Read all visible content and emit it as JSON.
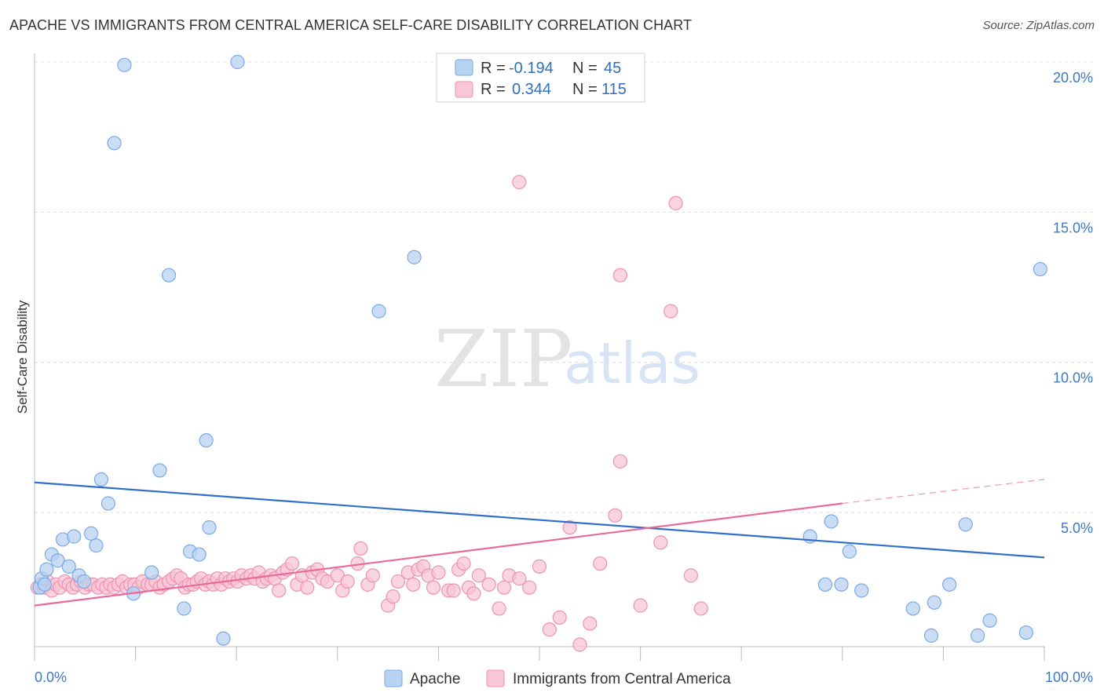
{
  "title": "APACHE VS IMMIGRANTS FROM CENTRAL AMERICA SELF-CARE DISABILITY CORRELATION CHART",
  "source": "Source: ZipAtlas.com",
  "watermark": {
    "zip": "ZIP",
    "atlas": "atlas"
  },
  "colors": {
    "apache_fill": "#b8d2f2",
    "apache_stroke": "#7aaae4",
    "apache_line": "#2f6fc9",
    "imm_fill": "#f8c6d6",
    "imm_stroke": "#ec93b1",
    "imm_line": "#e8699a",
    "grid": "#dddddd",
    "tick_label": "#3c78c8"
  },
  "legend": {
    "rows": [
      {
        "r_label": "R =",
        "r_value": "-0.194",
        "n_label": "N =",
        "n_value": "45"
      },
      {
        "r_label": "R =",
        "r_value": "0.344",
        "n_label": "N =",
        "n_value": "115"
      }
    ]
  },
  "chart_data": {
    "type": "scatter",
    "title": "APACHE VS IMMIGRANTS FROM CENTRAL AMERICA SELF-CARE DISABILITY CORRELATION CHART",
    "xlabel": "",
    "ylabel": "Self-Care Disability",
    "xlim": [
      0,
      100
    ],
    "ylim": [
      0,
      20.5
    ],
    "x_tick_labels": [
      "0.0%",
      "100.0%"
    ],
    "y_ticks": [
      5,
      10,
      15,
      20
    ],
    "y_tick_labels": [
      "5.0%",
      "10.0%",
      "15.0%",
      "20.0%"
    ],
    "grid": true,
    "legend_position": "top-center",
    "series": [
      {
        "name": "Apache",
        "r": -0.194,
        "n": 45,
        "trend": {
          "x0": 0,
          "y0": 6.0,
          "x1": 100,
          "y1": 3.5
        },
        "points": [
          [
            0.5,
            2.5
          ],
          [
            0.7,
            2.8
          ],
          [
            1.0,
            2.6
          ],
          [
            1.2,
            3.1
          ],
          [
            1.7,
            3.6
          ],
          [
            2.3,
            3.4
          ],
          [
            2.8,
            4.1
          ],
          [
            3.4,
            3.2
          ],
          [
            3.9,
            4.2
          ],
          [
            4.4,
            2.9
          ],
          [
            4.9,
            2.7
          ],
          [
            5.6,
            4.3
          ],
          [
            6.1,
            3.9
          ],
          [
            6.6,
            6.1
          ],
          [
            7.3,
            5.3
          ],
          [
            7.9,
            17.3
          ],
          [
            8.9,
            19.9
          ],
          [
            9.8,
            2.3
          ],
          [
            11.6,
            3.0
          ],
          [
            12.4,
            6.4
          ],
          [
            13.3,
            12.9
          ],
          [
            14.8,
            1.8
          ],
          [
            15.4,
            3.7
          ],
          [
            16.3,
            3.6
          ],
          [
            17.0,
            7.4
          ],
          [
            17.3,
            4.5
          ],
          [
            18.7,
            0.8
          ],
          [
            20.1,
            20.0
          ],
          [
            34.1,
            11.7
          ],
          [
            37.6,
            13.5
          ],
          [
            76.8,
            4.2
          ],
          [
            78.3,
            2.6
          ],
          [
            78.9,
            4.7
          ],
          [
            79.9,
            2.6
          ],
          [
            80.7,
            3.7
          ],
          [
            81.9,
            2.4
          ],
          [
            87.0,
            1.8
          ],
          [
            88.8,
            0.9
          ],
          [
            89.1,
            2.0
          ],
          [
            90.6,
            2.6
          ],
          [
            92.2,
            4.6
          ],
          [
            93.4,
            0.9
          ],
          [
            94.6,
            1.4
          ],
          [
            98.2,
            1.0
          ],
          [
            99.6,
            13.1
          ]
        ]
      },
      {
        "name": "Immigrants from Central America",
        "r": 0.344,
        "n": 115,
        "trend": {
          "x0": 0,
          "y0": 1.9,
          "x1": 80,
          "y1": 5.3
        },
        "trend_dashed_to": {
          "x": 100,
          "y": 6.1
        },
        "points": [
          [
            0.3,
            2.5
          ],
          [
            0.6,
            2.6
          ],
          [
            0.9,
            2.5
          ],
          [
            1.3,
            2.7
          ],
          [
            1.7,
            2.4
          ],
          [
            2.1,
            2.6
          ],
          [
            2.5,
            2.5
          ],
          [
            3.0,
            2.7
          ],
          [
            3.4,
            2.6
          ],
          [
            3.8,
            2.5
          ],
          [
            4.2,
            2.6
          ],
          [
            4.6,
            2.7
          ],
          [
            5.0,
            2.5
          ],
          [
            5.4,
            2.6
          ],
          [
            5.8,
            2.6
          ],
          [
            6.3,
            2.5
          ],
          [
            6.7,
            2.6
          ],
          [
            7.1,
            2.5
          ],
          [
            7.5,
            2.6
          ],
          [
            7.9,
            2.5
          ],
          [
            8.3,
            2.6
          ],
          [
            8.7,
            2.7
          ],
          [
            9.1,
            2.5
          ],
          [
            9.5,
            2.6
          ],
          [
            9.9,
            2.6
          ],
          [
            10.3,
            2.5
          ],
          [
            10.7,
            2.7
          ],
          [
            11.2,
            2.6
          ],
          [
            11.6,
            2.6
          ],
          [
            12.0,
            2.7
          ],
          [
            12.4,
            2.5
          ],
          [
            12.8,
            2.6
          ],
          [
            13.3,
            2.7
          ],
          [
            13.7,
            2.8
          ],
          [
            14.1,
            2.9
          ],
          [
            14.5,
            2.8
          ],
          [
            14.9,
            2.5
          ],
          [
            15.3,
            2.6
          ],
          [
            15.7,
            2.6
          ],
          [
            16.1,
            2.7
          ],
          [
            16.5,
            2.8
          ],
          [
            16.9,
            2.6
          ],
          [
            17.3,
            2.7
          ],
          [
            17.7,
            2.6
          ],
          [
            18.1,
            2.8
          ],
          [
            18.5,
            2.6
          ],
          [
            18.9,
            2.8
          ],
          [
            19.3,
            2.7
          ],
          [
            19.7,
            2.8
          ],
          [
            20.1,
            2.7
          ],
          [
            20.5,
            2.9
          ],
          [
            21.0,
            2.8
          ],
          [
            21.4,
            2.9
          ],
          [
            21.8,
            2.8
          ],
          [
            22.2,
            3.0
          ],
          [
            22.6,
            2.7
          ],
          [
            23.0,
            2.8
          ],
          [
            23.4,
            2.9
          ],
          [
            23.8,
            2.8
          ],
          [
            24.2,
            2.4
          ],
          [
            24.6,
            3.0
          ],
          [
            25.0,
            3.1
          ],
          [
            25.5,
            3.3
          ],
          [
            26.0,
            2.6
          ],
          [
            26.5,
            2.9
          ],
          [
            27.0,
            2.5
          ],
          [
            27.5,
            3.0
          ],
          [
            28.0,
            3.1
          ],
          [
            28.5,
            2.8
          ],
          [
            29.0,
            2.7
          ],
          [
            30.0,
            2.9
          ],
          [
            30.5,
            2.4
          ],
          [
            31.0,
            2.7
          ],
          [
            32.0,
            3.3
          ],
          [
            32.3,
            3.8
          ],
          [
            33.0,
            2.6
          ],
          [
            33.5,
            2.9
          ],
          [
            35.0,
            1.9
          ],
          [
            35.5,
            2.2
          ],
          [
            36.0,
            2.7
          ],
          [
            37.0,
            3.0
          ],
          [
            37.5,
            2.6
          ],
          [
            38.0,
            3.1
          ],
          [
            38.5,
            3.2
          ],
          [
            39.0,
            2.9
          ],
          [
            39.5,
            2.5
          ],
          [
            40.0,
            3.0
          ],
          [
            41.0,
            2.4
          ],
          [
            41.5,
            2.4
          ],
          [
            42.0,
            3.1
          ],
          [
            42.5,
            3.3
          ],
          [
            43.0,
            2.5
          ],
          [
            43.5,
            2.3
          ],
          [
            44.0,
            2.9
          ],
          [
            45.0,
            2.6
          ],
          [
            46.0,
            1.8
          ],
          [
            46.5,
            2.5
          ],
          [
            47.0,
            2.9
          ],
          [
            48.0,
            2.8
          ],
          [
            49.0,
            2.5
          ],
          [
            50.0,
            3.2
          ],
          [
            51.0,
            1.1
          ],
          [
            52.0,
            1.5
          ],
          [
            53.0,
            4.5
          ],
          [
            54.0,
            0.6
          ],
          [
            55.0,
            1.3
          ],
          [
            56.0,
            3.3
          ],
          [
            58.0,
            6.7
          ],
          [
            57.5,
            4.9
          ],
          [
            60.0,
            1.9
          ],
          [
            62.0,
            4.0
          ],
          [
            63.0,
            11.7
          ],
          [
            65.0,
            2.9
          ],
          [
            66.0,
            1.8
          ],
          [
            48.0,
            16.0
          ],
          [
            58.0,
            12.9
          ],
          [
            63.5,
            15.3
          ]
        ]
      }
    ]
  },
  "bottom_legend": [
    "Apache",
    "Immigrants from Central America"
  ]
}
